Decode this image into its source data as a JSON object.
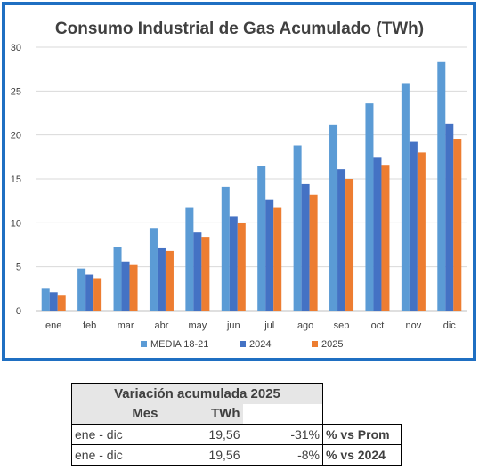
{
  "chart_data": {
    "type": "bar",
    "title": "Consumo Industrial de Gas Acumulado (TWh)",
    "categories": [
      "ene",
      "feb",
      "mar",
      "abr",
      "may",
      "jun",
      "jul",
      "ago",
      "sep",
      "oct",
      "nov",
      "dic"
    ],
    "ylim": [
      0,
      30
    ],
    "yticks": [
      0,
      5,
      10,
      15,
      20,
      25,
      30
    ],
    "grid": true,
    "legend_position": "bottom",
    "series": [
      {
        "name": "MEDIA 18-21",
        "color": "#5b9bd5",
        "values": [
          2.5,
          4.8,
          7.2,
          9.4,
          11.7,
          14.1,
          16.5,
          18.8,
          21.2,
          23.6,
          25.9,
          28.3
        ]
      },
      {
        "name": "2024",
        "color": "#4472c4",
        "values": [
          2.1,
          4.1,
          5.6,
          7.1,
          8.9,
          10.7,
          12.6,
          14.4,
          16.1,
          17.5,
          19.3,
          21.3
        ]
      },
      {
        "name": "2025",
        "color": "#ed7d31",
        "values": [
          1.8,
          3.7,
          5.2,
          6.8,
          8.4,
          10.0,
          11.7,
          13.2,
          15.0,
          16.6,
          18.0,
          19.56
        ]
      }
    ]
  },
  "summary": {
    "title": "Variación acumulada 2025",
    "col_mes": "Mes",
    "col_twh": "TWh",
    "rows": [
      {
        "mes": "ene - dic",
        "twh": "19,56",
        "var": "-31%",
        "label": "% vs Prom"
      },
      {
        "mes": "ene - dic",
        "twh": "19,56",
        "var": "-8%",
        "label": "% vs 2024"
      }
    ]
  }
}
